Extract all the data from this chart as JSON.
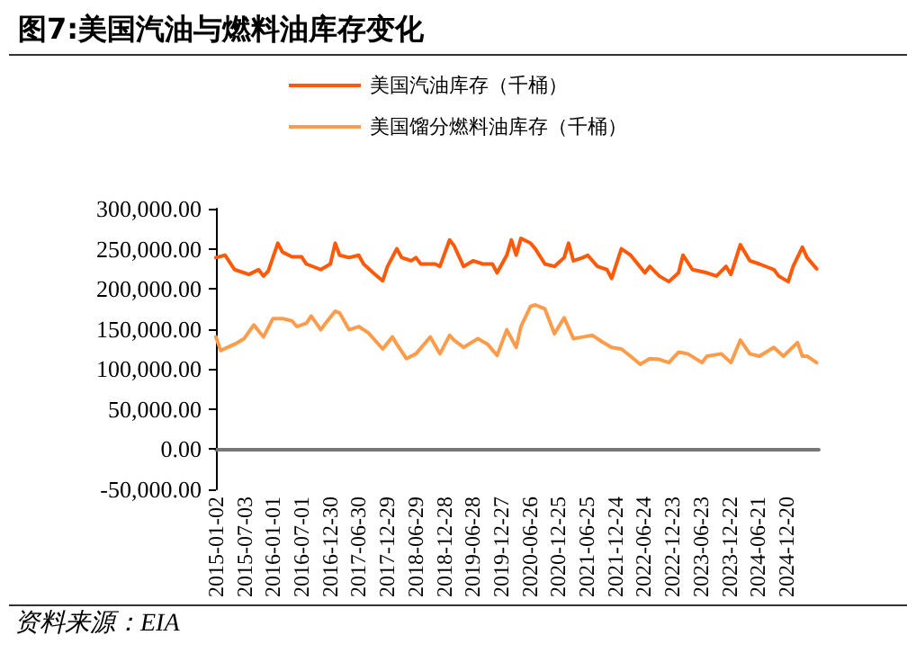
{
  "chart_data": {
    "type": "line",
    "title": "图7:美国汽油与燃料油库存变化",
    "annotations": [
      "资料来源：EIA"
    ],
    "legend": "top",
    "grid": false,
    "marker": "none",
    "line_style": "solid",
    "xlim": [
      "2015-01-02",
      "2025-07-15"
    ],
    "xticks": [
      "2015-01-02",
      "2015-07-03",
      "2016-01-01",
      "2016-07-01",
      "2016-12-30",
      "2017-06-30",
      "2017-12-29",
      "2018-06-29",
      "2018-12-28",
      "2019-06-28",
      "2019-12-27",
      "2020-06-26",
      "2020-12-25",
      "2021-06-25",
      "2021-12-24",
      "2022-06-24",
      "2022-12-23",
      "2023-06-23",
      "2023-12-22",
      "2024-06-21",
      "2024-12-20"
    ],
    "ylim": [
      -50000,
      300000
    ],
    "yticks": [
      {
        "value": -50000,
        "label": "-50,000.00"
      },
      {
        "value": 0,
        "label": "0.00"
      },
      {
        "value": 50000,
        "label": "50,000.00"
      },
      {
        "value": 100000,
        "label": "100,000.00"
      },
      {
        "value": 150000,
        "label": "150,000.00"
      },
      {
        "value": 200000,
        "label": "200,000.00"
      },
      {
        "value": 250000,
        "label": "250,000.00"
      },
      {
        "value": 300000,
        "label": "300,000.00"
      }
    ],
    "series": [
      {
        "name": "美国汽油库存（千桶）",
        "color": "#ff5a0a",
        "x": [
          "2015-01-02",
          "2015-03",
          "2015-05",
          "2015-08",
          "2015-10",
          "2015-11",
          "2015-12",
          "2016-02",
          "2016-03",
          "2016-05",
          "2016-07",
          "2016-08",
          "2016-11",
          "2017-01",
          "2017-02",
          "2017-03",
          "2017-05",
          "2017-07",
          "2017-08",
          "2017-10",
          "2017-12",
          "2018-01",
          "2018-03",
          "2018-04",
          "2018-06",
          "2018-07",
          "2018-08",
          "2018-11",
          "2018-12",
          "2019-02",
          "2019-03",
          "2019-05",
          "2019-07",
          "2019-09",
          "2019-11",
          "2019-12",
          "2020-02",
          "2020-03",
          "2020-04",
          "2020-05",
          "2020-07",
          "2020-08",
          "2020-10",
          "2020-12",
          "2021-02",
          "2021-03",
          "2021-04",
          "2021-06",
          "2021-07",
          "2021-09",
          "2021-11",
          "2021-12",
          "2022-02",
          "2022-04",
          "2022-07",
          "2022-08",
          "2022-10",
          "2022-12",
          "2023-02",
          "2023-03",
          "2023-05",
          "2023-08",
          "2023-10",
          "2023-12",
          "2024-01",
          "2024-03",
          "2024-05",
          "2024-07",
          "2024-10",
          "2024-11",
          "2025-01",
          "2025-02",
          "2025-04",
          "2025-05",
          "2025-07"
        ],
        "values": [
          239000,
          242000,
          224000,
          218000,
          224000,
          216000,
          222000,
          257000,
          246000,
          240000,
          240000,
          231000,
          224000,
          231000,
          257000,
          242000,
          239000,
          242000,
          231000,
          220000,
          210000,
          228000,
          250000,
          239000,
          235000,
          239000,
          231000,
          231000,
          228000,
          261000,
          254000,
          228000,
          235000,
          231000,
          231000,
          220000,
          242000,
          261000,
          242000,
          263000,
          257000,
          250000,
          231000,
          228000,
          239000,
          257000,
          235000,
          239000,
          242000,
          228000,
          224000,
          213000,
          250000,
          242000,
          220000,
          228000,
          216000,
          209000,
          220000,
          242000,
          224000,
          220000,
          216000,
          228000,
          218000,
          255000,
          235000,
          231000,
          224000,
          216000,
          209000,
          228000,
          252000,
          239000,
          225000
        ]
      },
      {
        "name": "美国馏分燃料油库存（千桶）",
        "color": "#ff9c4c",
        "x": [
          "2015-01-02",
          "2015-02",
          "2015-05",
          "2015-07",
          "2015-09",
          "2015-11",
          "2016-01",
          "2016-03",
          "2016-05",
          "2016-06",
          "2016-08",
          "2016-09",
          "2016-11",
          "2016-12",
          "2017-02",
          "2017-03",
          "2017-05",
          "2017-07",
          "2017-09",
          "2017-12",
          "2018-02",
          "2018-03",
          "2018-05",
          "2018-07",
          "2018-10",
          "2018-12",
          "2019-02",
          "2019-03",
          "2019-05",
          "2019-08",
          "2019-10",
          "2019-12",
          "2020-02",
          "2020-04",
          "2020-05",
          "2020-07",
          "2020-08",
          "2020-10",
          "2020-12",
          "2021-02",
          "2021-04",
          "2021-06",
          "2021-08",
          "2021-10",
          "2021-12",
          "2022-02",
          "2022-04",
          "2022-06",
          "2022-08",
          "2022-10",
          "2022-12",
          "2023-02",
          "2023-04",
          "2023-07",
          "2023-08",
          "2023-11",
          "2024-01",
          "2024-03",
          "2024-05",
          "2024-07",
          "2024-10",
          "2024-12",
          "2025-03",
          "2025-04",
          "2025-05",
          "2025-07"
        ],
        "values": [
          140000,
          123000,
          131000,
          138000,
          155000,
          140000,
          163000,
          163000,
          160000,
          153000,
          157000,
          166000,
          149000,
          157000,
          172000,
          170000,
          149000,
          153000,
          145000,
          125000,
          140000,
          131000,
          113000,
          119000,
          140000,
          119000,
          142000,
          136000,
          127000,
          138000,
          131000,
          117000,
          149000,
          127000,
          153000,
          178000,
          180000,
          175000,
          144000,
          164000,
          138000,
          140000,
          142000,
          134000,
          127000,
          125000,
          116000,
          106000,
          113000,
          112000,
          108000,
          121000,
          119000,
          108000,
          116000,
          119000,
          108000,
          136000,
          119000,
          116000,
          127000,
          116000,
          133000,
          116000,
          116000,
          108000
        ]
      }
    ]
  }
}
